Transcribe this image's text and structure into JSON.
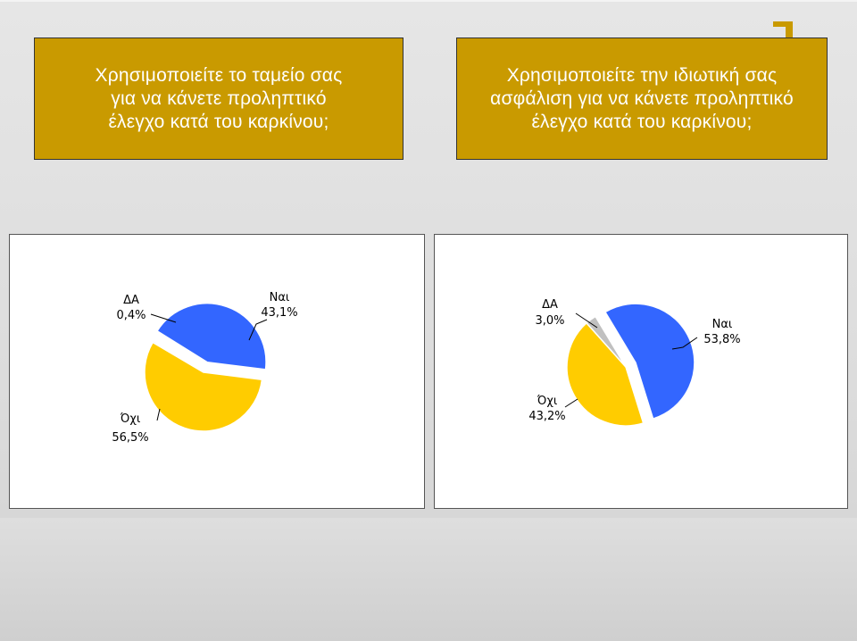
{
  "titles": {
    "left": [
      "Χρησιμοποιείτε το ταμείο σας",
      "για να κάνετε προληπτικό",
      "έλεγχο κατά του καρκίνου;"
    ],
    "right": [
      "Χρησιμοποιείτε την ιδιωτική σας",
      "ασφάλιση για να κάνετε προληπτικό",
      "έλεγχο κατά του καρκίνου;"
    ]
  },
  "colors": {
    "title_bg": "#c99a00",
    "yes": "#3366ff",
    "no": "#ffcc00",
    "dk": "#c0c0c0"
  },
  "chart_data": [
    {
      "type": "pie",
      "title": "",
      "slices": [
        {
          "label": "Ναι",
          "value": 43.1,
          "value_label": "43,1%",
          "color": "#3366ff",
          "exploded": true
        },
        {
          "label": "Όχι",
          "value": 56.5,
          "value_label": "56,5%",
          "color": "#ffcc00",
          "exploded": false
        },
        {
          "label": "ΔΑ",
          "value": 0.4,
          "value_label": "0,4%",
          "color": "#c0c0c0",
          "exploded": false
        }
      ]
    },
    {
      "type": "pie",
      "title": "",
      "slices": [
        {
          "label": "Ναι",
          "value": 53.8,
          "value_label": "53,8%",
          "color": "#3366ff",
          "exploded": true
        },
        {
          "label": "Όχι",
          "value": 43.2,
          "value_label": "43,2%",
          "color": "#ffcc00",
          "exploded": false
        },
        {
          "label": "ΔΑ",
          "value": 3.0,
          "value_label": "3,0%",
          "color": "#c0c0c0",
          "exploded": false
        }
      ]
    }
  ]
}
